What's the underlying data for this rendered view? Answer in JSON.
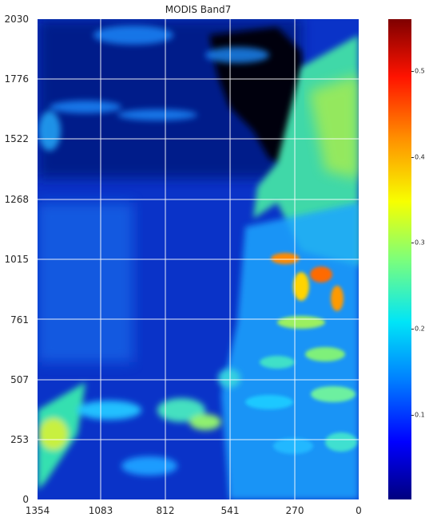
{
  "title": "MODIS Band7",
  "y_ticks": [
    "2030",
    "1776",
    "1522",
    "1268",
    "1015",
    "761",
    "507",
    "253",
    "0"
  ],
  "x_ticks": [
    "1354",
    "1083",
    "812",
    "541",
    "270",
    "0"
  ],
  "colorbar_ticks": [
    "0.5",
    "0.4",
    "0.3",
    "0.2",
    "0.1"
  ],
  "colormap": "jet",
  "colorbar_range": [
    0,
    0.56
  ]
}
